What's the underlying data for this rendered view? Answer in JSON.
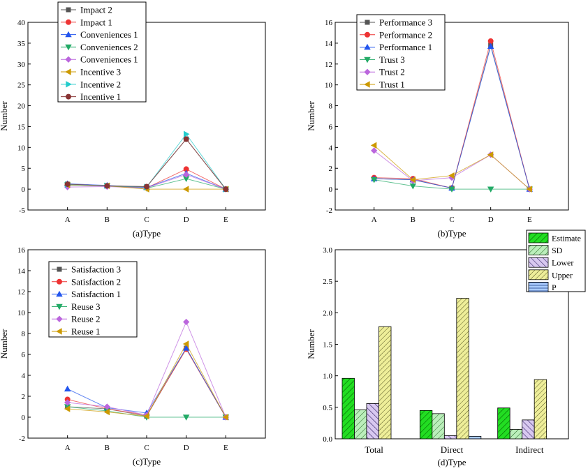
{
  "chart_data": [
    {
      "type": "line",
      "panel": "a",
      "xlabel": "(a)Type",
      "ylabel": "Number",
      "categories": [
        "A",
        "B",
        "C",
        "D",
        "E"
      ],
      "ylim": [
        -5,
        40
      ],
      "yticks": [
        -5,
        0,
        5,
        10,
        15,
        20,
        25,
        30,
        35,
        40
      ],
      "legend_position": "top-left",
      "series": [
        {
          "name": "Impact 2",
          "color": "#555555",
          "marker": "square",
          "values": [
            1.2,
            0.8,
            0.6,
            12.0,
            0
          ]
        },
        {
          "name": "Impact 1",
          "color": "#ee3333",
          "marker": "circle",
          "values": [
            1.0,
            0.8,
            0.3,
            4.8,
            0
          ]
        },
        {
          "name": "Conveniences 1",
          "color": "#2255ee",
          "marker": "triangle-up",
          "values": [
            1.3,
            0.9,
            0.4,
            3.8,
            0
          ]
        },
        {
          "name": "Conveniences 2",
          "color": "#22aa66",
          "marker": "triangle-down",
          "values": [
            1.0,
            0.8,
            0.2,
            2.5,
            0
          ]
        },
        {
          "name": "Conveniences 1",
          "color": "#bb66dd",
          "marker": "diamond",
          "values": [
            0.5,
            0.6,
            0.3,
            3.5,
            0
          ]
        },
        {
          "name": "Incentive 3",
          "color": "#cc9900",
          "marker": "triangle-left",
          "values": [
            1.0,
            0.8,
            0.0,
            0.0,
            0
          ]
        },
        {
          "name": "Incentive 2",
          "color": "#22cccc",
          "marker": "triangle-right",
          "values": [
            1.1,
            0.8,
            0.5,
            13.2,
            0
          ]
        },
        {
          "name": "Incentive 1",
          "color": "#883333",
          "marker": "circle",
          "values": [
            1.2,
            0.8,
            0.6,
            12.0,
            0
          ]
        }
      ]
    },
    {
      "type": "line",
      "panel": "b",
      "xlabel": "(b)Type",
      "ylabel": "Number",
      "categories": [
        "A",
        "B",
        "C",
        "D",
        "E"
      ],
      "ylim": [
        -2,
        16
      ],
      "yticks": [
        -2,
        0,
        2,
        4,
        6,
        8,
        10,
        12,
        14,
        16
      ],
      "legend_position": "top-left",
      "series": [
        {
          "name": "Performance 3",
          "color": "#555555",
          "marker": "square",
          "values": [
            1.0,
            0.9,
            0.1,
            13.8,
            0
          ]
        },
        {
          "name": "Performance 2",
          "color": "#ee3333",
          "marker": "circle",
          "values": [
            1.1,
            1.0,
            0.1,
            14.2,
            0
          ]
        },
        {
          "name": "Performance 1",
          "color": "#2255ee",
          "marker": "triangle-up",
          "values": [
            1.0,
            0.9,
            0.1,
            13.7,
            0
          ]
        },
        {
          "name": "Trust 3",
          "color": "#22aa66",
          "marker": "triangle-down",
          "values": [
            0.9,
            0.3,
            0.0,
            0.0,
            0
          ]
        },
        {
          "name": "Trust 2",
          "color": "#bb66dd",
          "marker": "diamond",
          "values": [
            3.7,
            0.8,
            1.1,
            3.3,
            0
          ]
        },
        {
          "name": "Trust 1",
          "color": "#cc9900",
          "marker": "triangle-left",
          "values": [
            4.2,
            0.9,
            1.3,
            3.3,
            0
          ]
        }
      ]
    },
    {
      "type": "line",
      "panel": "c",
      "xlabel": "(c)Type",
      "ylabel": "Number",
      "categories": [
        "A",
        "B",
        "C",
        "D",
        "E"
      ],
      "ylim": [
        -2,
        16
      ],
      "yticks": [
        -2,
        0,
        2,
        4,
        6,
        8,
        10,
        12,
        14,
        16
      ],
      "legend_position": "top-left",
      "series": [
        {
          "name": "Satisfaction 3",
          "color": "#555555",
          "marker": "square",
          "values": [
            1.0,
            0.8,
            0.1,
            6.6,
            0
          ]
        },
        {
          "name": "Satisfaction 2",
          "color": "#ee3333",
          "marker": "circle",
          "values": [
            1.7,
            0.8,
            0.2,
            6.5,
            0
          ]
        },
        {
          "name": "Satisfaction 1",
          "color": "#2255ee",
          "marker": "triangle-up",
          "values": [
            2.7,
            0.9,
            0.4,
            6.6,
            0
          ]
        },
        {
          "name": "Reuse 3",
          "color": "#22aa66",
          "marker": "triangle-down",
          "values": [
            1.0,
            0.6,
            0.0,
            0.0,
            0
          ]
        },
        {
          "name": "Reuse 2",
          "color": "#bb66dd",
          "marker": "diamond",
          "values": [
            1.4,
            1.0,
            0.2,
            9.1,
            0
          ]
        },
        {
          "name": "Reuse 1",
          "color": "#cc9900",
          "marker": "triangle-left",
          "values": [
            0.8,
            0.5,
            0.1,
            7.0,
            0
          ]
        }
      ]
    },
    {
      "type": "bar",
      "panel": "d",
      "xlabel": "(d)Type",
      "ylabel": "Number",
      "categories": [
        "Total",
        "Direct",
        "Indirect"
      ],
      "ylim": [
        0,
        3.0
      ],
      "yticks": [
        0.0,
        0.5,
        1.0,
        1.5,
        2.0,
        2.5,
        3.0
      ],
      "legend_position": "top-right",
      "series": [
        {
          "name": "Estimate",
          "color": "#22dd22",
          "pattern": "solid-hatch",
          "values": [
            0.96,
            0.45,
            0.49
          ]
        },
        {
          "name": "SD",
          "color": "#bbeebb",
          "pattern": "diag",
          "values": [
            0.46,
            0.4,
            0.15
          ]
        },
        {
          "name": "Lower",
          "color": "#c8b8e8",
          "pattern": "diag-back",
          "values": [
            0.56,
            0.05,
            0.3
          ]
        },
        {
          "name": "Upper",
          "color": "#eeee99",
          "pattern": "diag-dense",
          "values": [
            1.78,
            2.23,
            0.94
          ]
        },
        {
          "name": "P",
          "color": "#99bbee",
          "pattern": "horizontal",
          "values": [
            0.0,
            0.04,
            0.0
          ]
        }
      ]
    }
  ],
  "tick_format": {
    "panel_d_decimals": 1
  }
}
